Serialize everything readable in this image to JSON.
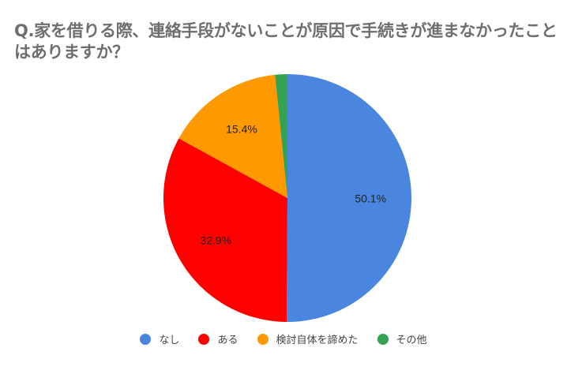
{
  "title": "Q.家を借りる際、連絡手段がないことが原因で手続きが進まなかったことはありますか？",
  "chart_data": {
    "type": "pie",
    "title": "Q.家を借りる際、連絡手段がないことが原因で手続きが進まなかったことはありますか？",
    "categories": [
      "なし",
      "ある",
      "検討自体を諦めた",
      "その他"
    ],
    "values": [
      50.1,
      32.9,
      15.4,
      1.6
    ],
    "labels": [
      "50.1%",
      "32.9%",
      "15.4%",
      ""
    ],
    "colors": [
      "#4a86e0",
      "#ff0000",
      "#ff9900",
      "#33a353"
    ],
    "legend_position": "bottom",
    "start_angle_deg": 0,
    "direction": "clockwise"
  },
  "legend": [
    {
      "label": "なし",
      "color": "#4a86e0"
    },
    {
      "label": "ある",
      "color": "#ff0000"
    },
    {
      "label": "検討自体を諦めた",
      "color": "#ff9900"
    },
    {
      "label": "その他",
      "color": "#33a353"
    }
  ]
}
